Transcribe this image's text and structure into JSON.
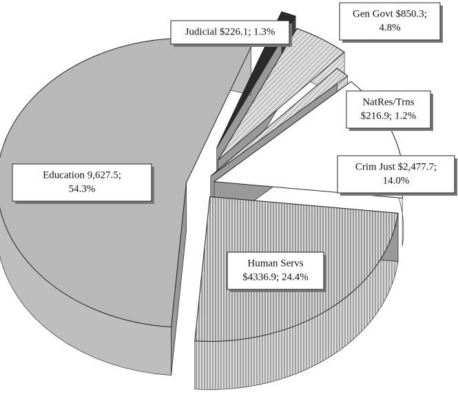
{
  "chart_data": {
    "type": "pie",
    "categories": [
      "Judicial",
      "Gen Govt",
      "NatRes/Trns",
      "Crim Just",
      "Human Servs",
      "Education"
    ],
    "values": [
      226.1,
      850.3,
      216.9,
      2477.7,
      4336.9,
      9627.5
    ],
    "value_labels": [
      [
        "Judicial $226.1;  1.3%"
      ],
      [
        "Gen Govt $850.3;",
        "4.8%"
      ],
      [
        "NatRes/Trns",
        "$216.9; 1.2%"
      ],
      [
        "Crim  Just $2,477.7;",
        "14.0%"
      ],
      [
        "Human Servs",
        "$4336.9; 24.4%"
      ],
      [
        "Education 9,627.5;",
        "54.3%"
      ]
    ],
    "colors": [
      "#2a2a2a",
      "#cfcfcf",
      "#8c8c8c",
      "#ffffff",
      "#b4b4b4",
      "#b8b8b8"
    ]
  }
}
